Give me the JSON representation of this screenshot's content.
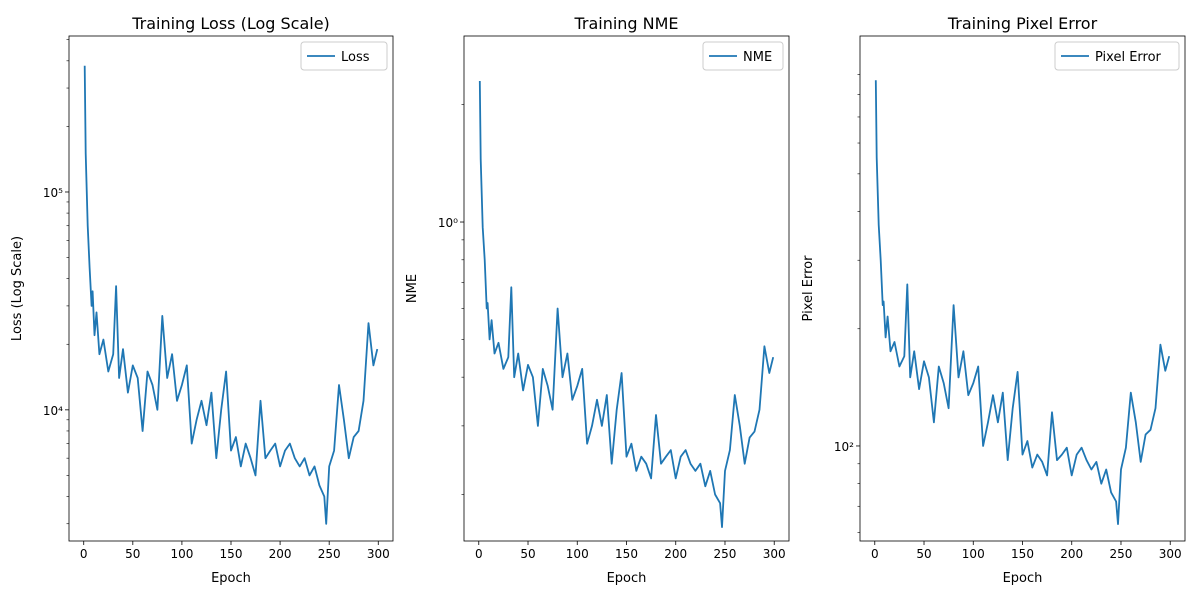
{
  "chart_data": [
    {
      "type": "line",
      "title": "Training Loss (Log Scale)",
      "xlabel": "Epoch",
      "ylabel": "Loss (Log Scale)",
      "yscale": "log",
      "xlim": [
        -15,
        315
      ],
      "ylim": [
        2500,
        520000
      ],
      "grid": false,
      "legend": "top-right",
      "xticks": [
        0,
        50,
        100,
        150,
        200,
        250,
        300
      ],
      "xtick_labels": [
        "0",
        "50",
        "100",
        "150",
        "200",
        "250",
        "300"
      ],
      "yticks": [
        10000,
        100000
      ],
      "ytick_labels": [
        "10⁴",
        "10⁵"
      ],
      "series": [
        {
          "name": "Loss",
          "color": "#1f77b4",
          "x": [
            1,
            2,
            4,
            6,
            8,
            9,
            11,
            13,
            16,
            20,
            25,
            30,
            33,
            36,
            40,
            45,
            50,
            55,
            60,
            65,
            70,
            75,
            80,
            85,
            90,
            95,
            100,
            105,
            110,
            115,
            120,
            125,
            130,
            135,
            140,
            145,
            150,
            155,
            160,
            165,
            170,
            175,
            180,
            185,
            190,
            195,
            200,
            205,
            210,
            215,
            220,
            225,
            230,
            235,
            240,
            245,
            247,
            250,
            255,
            260,
            265,
            270,
            275,
            280,
            285,
            290,
            295,
            299
          ],
          "values": [
            380000,
            150000,
            70000,
            45000,
            30000,
            35000,
            22000,
            28000,
            18000,
            21000,
            15000,
            18000,
            37000,
            14000,
            19000,
            12000,
            16000,
            14000,
            8000,
            15000,
            13000,
            10000,
            27000,
            14000,
            18000,
            11000,
            13000,
            16000,
            7000,
            9000,
            11000,
            8500,
            12000,
            6000,
            10000,
            15000,
            6500,
            7500,
            5500,
            7000,
            6000,
            5000,
            11000,
            6000,
            6500,
            7000,
            5500,
            6500,
            7000,
            6000,
            5500,
            6000,
            5000,
            5500,
            4500,
            4000,
            3000,
            5500,
            6500,
            13000,
            9000,
            6000,
            7500,
            8000,
            11000,
            25000,
            16000,
            19000
          ]
        }
      ]
    },
    {
      "type": "line",
      "title": "Training NME",
      "xlabel": "Epoch",
      "ylabel": "NME",
      "yscale": "log",
      "xlim": [
        -15,
        315
      ],
      "ylim": [
        0.152,
        3.0
      ],
      "grid": false,
      "legend": "top-right",
      "xticks": [
        0,
        50,
        100,
        150,
        200,
        250,
        300
      ],
      "xtick_labels": [
        "0",
        "50",
        "100",
        "150",
        "200",
        "250",
        "300"
      ],
      "yticks": [
        1.0
      ],
      "ytick_labels": [
        "10⁰"
      ],
      "series": [
        {
          "name": "NME",
          "color": "#1f77b4",
          "x": [
            1,
            2,
            4,
            6,
            8,
            9,
            11,
            13,
            16,
            20,
            25,
            30,
            33,
            36,
            40,
            45,
            50,
            55,
            60,
            65,
            70,
            75,
            80,
            85,
            90,
            95,
            100,
            105,
            110,
            115,
            120,
            125,
            130,
            135,
            140,
            145,
            150,
            155,
            160,
            165,
            170,
            175,
            180,
            185,
            190,
            195,
            200,
            205,
            210,
            215,
            220,
            225,
            230,
            235,
            240,
            245,
            247,
            250,
            255,
            260,
            265,
            270,
            275,
            280,
            285,
            290,
            295,
            299
          ],
          "values": [
            2.3,
            1.45,
            0.97,
            0.8,
            0.6,
            0.62,
            0.5,
            0.56,
            0.46,
            0.49,
            0.42,
            0.45,
            0.68,
            0.4,
            0.46,
            0.37,
            0.43,
            0.4,
            0.3,
            0.42,
            0.38,
            0.33,
            0.6,
            0.4,
            0.46,
            0.35,
            0.38,
            0.42,
            0.27,
            0.3,
            0.35,
            0.3,
            0.36,
            0.24,
            0.33,
            0.41,
            0.25,
            0.27,
            0.23,
            0.25,
            0.24,
            0.22,
            0.32,
            0.24,
            0.25,
            0.26,
            0.22,
            0.25,
            0.26,
            0.24,
            0.23,
            0.24,
            0.21,
            0.23,
            0.2,
            0.19,
            0.165,
            0.23,
            0.26,
            0.36,
            0.3,
            0.24,
            0.28,
            0.29,
            0.33,
            0.48,
            0.41,
            0.45
          ]
        }
      ]
    },
    {
      "type": "line",
      "title": "Training Pixel Error",
      "xlabel": "Epoch",
      "ylabel": "Pixel Error",
      "yscale": "log",
      "xlim": [
        -15,
        315
      ],
      "ylim": [
        57,
        1130
      ],
      "grid": false,
      "legend": "top-right",
      "xticks": [
        0,
        50,
        100,
        150,
        200,
        250,
        300
      ],
      "xtick_labels": [
        "0",
        "50",
        "100",
        "150",
        "200",
        "250",
        "300"
      ],
      "yticks": [
        100
      ],
      "ytick_labels": [
        "10²"
      ],
      "series": [
        {
          "name": "Pixel Error",
          "color": "#1f77b4",
          "x": [
            1,
            2,
            4,
            6,
            8,
            9,
            11,
            13,
            16,
            20,
            25,
            30,
            33,
            36,
            40,
            45,
            50,
            55,
            60,
            65,
            70,
            75,
            80,
            85,
            90,
            95,
            100,
            105,
            110,
            115,
            120,
            125,
            130,
            135,
            140,
            145,
            150,
            155,
            160,
            165,
            170,
            175,
            180,
            185,
            190,
            195,
            200,
            205,
            210,
            215,
            220,
            225,
            230,
            235,
            240,
            245,
            247,
            250,
            255,
            260,
            265,
            270,
            275,
            280,
            285,
            290,
            295,
            299
          ],
          "values": [
            870,
            550,
            370,
            300,
            230,
            235,
            190,
            215,
            175,
            185,
            160,
            170,
            260,
            150,
            175,
            140,
            165,
            150,
            115,
            160,
            145,
            125,
            230,
            150,
            175,
            135,
            145,
            160,
            100,
            115,
            135,
            115,
            137,
            92,
            125,
            155,
            95,
            103,
            88,
            95,
            91,
            84,
            122,
            92,
            95,
            99,
            84,
            95,
            99,
            92,
            87,
            91,
            80,
            87,
            76,
            72,
            63,
            87,
            99,
            137,
            115,
            91,
            107,
            110,
            125,
            182,
            156,
            170
          ]
        }
      ]
    }
  ]
}
